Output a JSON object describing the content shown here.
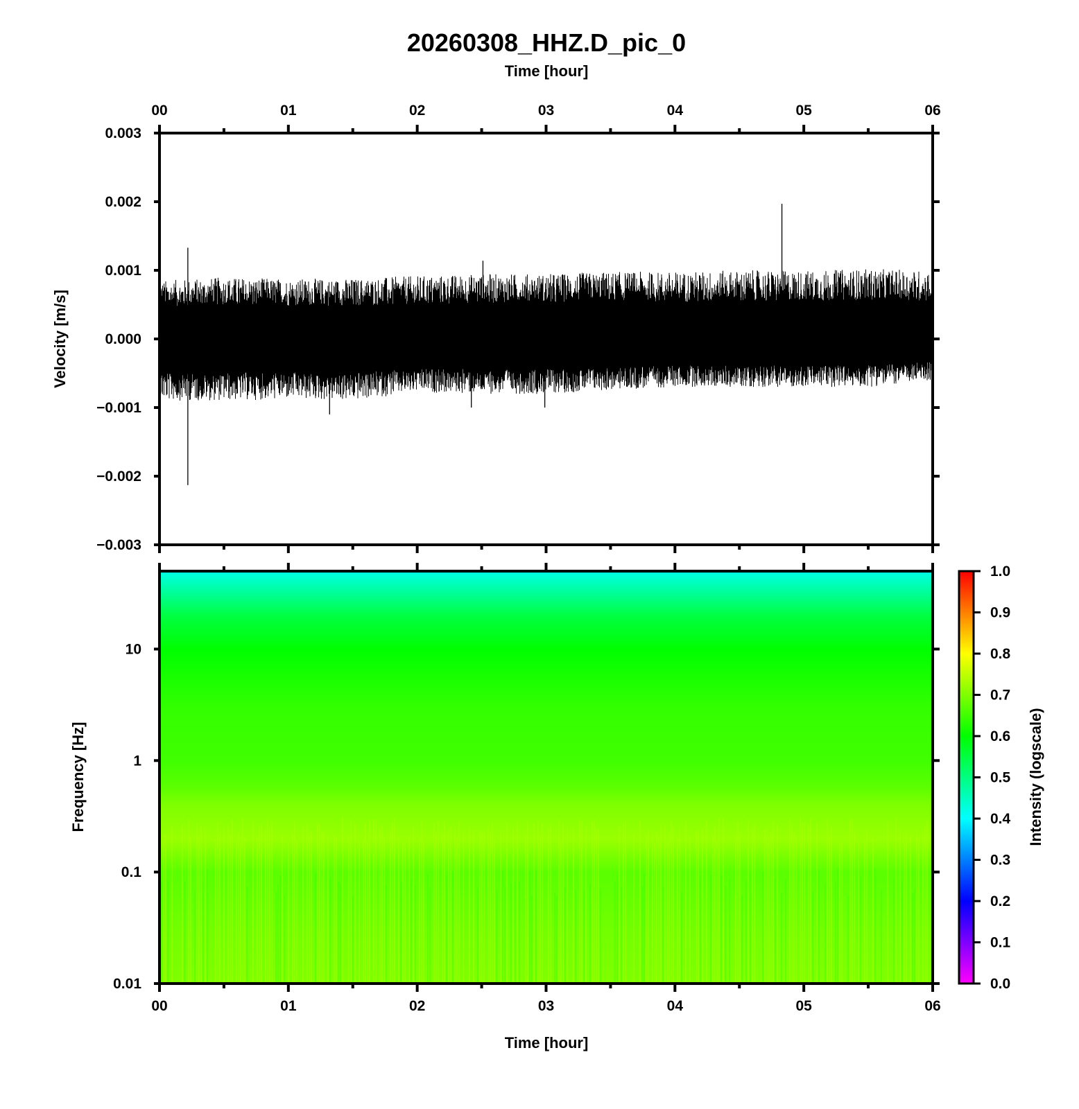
{
  "title": "20260308_HHZ.D_pic_0",
  "top_axis_label": "Time [hour]",
  "bottom_axis_label": "Time [hour]",
  "time_ticks": [
    "00",
    "01",
    "02",
    "03",
    "04",
    "05",
    "06"
  ],
  "chart_data": [
    {
      "type": "line",
      "name": "waveform",
      "ylabel": "Velocity [m/s]",
      "xlabel": "Time [hour]",
      "xlim": [
        0,
        6
      ],
      "ylim": [
        -0.003,
        0.003
      ],
      "y_ticks": [
        "0.003",
        "0.002",
        "0.001",
        "0.000",
        "−0.001",
        "−0.002",
        "−0.003"
      ],
      "y_tick_values": [
        0.003,
        0.002,
        0.001,
        0.0,
        -0.001,
        -0.002,
        -0.003
      ],
      "envelope": {
        "x": [
          0,
          0.5,
          1,
          1.5,
          2,
          2.5,
          3,
          3.5,
          4,
          4.5,
          5,
          5.5,
          6
        ],
        "upper": [
          0.00085,
          0.0009,
          0.00088,
          0.00088,
          0.00092,
          0.00095,
          0.00095,
          0.00098,
          0.00098,
          0.001,
          0.001,
          0.00102,
          0.001
        ],
        "lower": [
          -0.0009,
          -0.0009,
          -0.00088,
          -0.0009,
          -0.00078,
          -0.0008,
          -0.0008,
          -0.00075,
          -0.0007,
          -0.0007,
          -0.0007,
          -0.0007,
          -0.0006
        ]
      },
      "spikes": [
        {
          "x": 0.22,
          "y": 0.00133
        },
        {
          "x": 0.22,
          "y": -0.00213
        },
        {
          "x": 4.83,
          "y": 0.00197
        },
        {
          "x": 1.32,
          "y": -0.0011
        },
        {
          "x": 2.42,
          "y": -0.001
        },
        {
          "x": 2.99,
          "y": -0.001
        },
        {
          "x": 2.51,
          "y": 0.00114
        }
      ],
      "color": "#000000"
    },
    {
      "type": "heatmap",
      "name": "spectrogram",
      "ylabel": "Frequency [Hz]",
      "xlabel": "Time [hour]",
      "xlim": [
        0,
        6
      ],
      "ylim": [
        0.01,
        50
      ],
      "y_scale": "log",
      "y_ticks": [
        "10",
        "1",
        "0.1",
        "0.01"
      ],
      "y_tick_values": [
        10,
        1,
        0.1,
        0.01
      ],
      "intensity_profile": {
        "freq": [
          0.01,
          0.03,
          0.1,
          0.2,
          0.4,
          0.6,
          1,
          3,
          10,
          20,
          35,
          50
        ],
        "value": [
          0.7,
          0.69,
          0.67,
          0.72,
          0.7,
          0.67,
          0.65,
          0.64,
          0.6,
          0.55,
          0.47,
          0.42
        ]
      },
      "colorbar": {
        "label": "Intensity (logscale)",
        "ticks": [
          "1.0",
          "0.9",
          "0.8",
          "0.7",
          "0.6",
          "0.5",
          "0.4",
          "0.3",
          "0.2",
          "0.1",
          "0.0"
        ],
        "tick_values": [
          1.0,
          0.9,
          0.8,
          0.7,
          0.6,
          0.5,
          0.4,
          0.3,
          0.2,
          0.1,
          0.0
        ],
        "range": [
          0,
          1
        ],
        "colors": [
          "#ff00ff",
          "#0000ff",
          "#00ffff",
          "#00ff00",
          "#ffff00",
          "#ff0000"
        ]
      }
    }
  ]
}
